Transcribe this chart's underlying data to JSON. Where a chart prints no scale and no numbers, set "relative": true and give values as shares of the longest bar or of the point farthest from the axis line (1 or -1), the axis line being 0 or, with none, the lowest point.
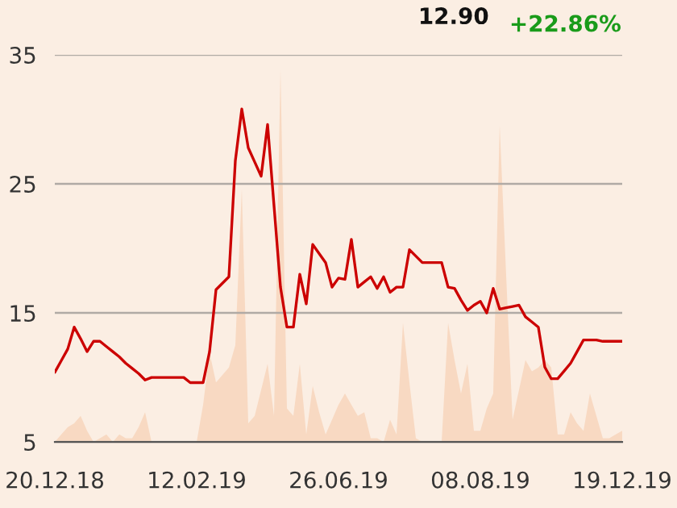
{
  "chart_data": [
    {
      "type": "line",
      "color": "#cc0000",
      "categories": [
        "20.12.18",
        null,
        null,
        null,
        null,
        null,
        null,
        null,
        null,
        null,
        null,
        null,
        null,
        null,
        null,
        null,
        null,
        null,
        null,
        null,
        null,
        null,
        "12.02.19",
        null,
        null,
        null,
        null,
        null,
        null,
        null,
        null,
        null,
        null,
        null,
        null,
        null,
        null,
        null,
        null,
        null,
        null,
        null,
        null,
        null,
        "26.06.19",
        null,
        null,
        null,
        null,
        null,
        null,
        null,
        null,
        null,
        null,
        null,
        null,
        null,
        null,
        null,
        null,
        null,
        null,
        null,
        null,
        null,
        "08.08.19",
        null,
        null,
        null,
        null,
        null,
        null,
        null,
        null,
        null,
        null,
        null,
        null,
        null,
        null,
        null,
        null,
        null,
        null,
        null,
        null,
        null,
        "19.12.19"
      ],
      "values": [
        10.4,
        11.3,
        12.2,
        13.9,
        13.0,
        12.0,
        12.8,
        12.8,
        12.4,
        12.0,
        11.6,
        11.1,
        10.7,
        10.3,
        9.8,
        10.0,
        10.0,
        10.0,
        10.0,
        10.0,
        10.0,
        9.6,
        9.6,
        9.6,
        12.0,
        16.8,
        17.3,
        17.8,
        26.8,
        30.8,
        27.8,
        26.7,
        25.6,
        29.6,
        23.3,
        17.0,
        13.9,
        13.9,
        18.0,
        15.7,
        20.3,
        19.6,
        18.9,
        17.0,
        17.7,
        17.6,
        20.7,
        17.0,
        17.4,
        17.8,
        16.9,
        17.8,
        16.6,
        17.0,
        17.0,
        19.9,
        19.4,
        18.9,
        18.9,
        18.9,
        18.9,
        17.0,
        16.9,
        16.0,
        15.2,
        15.6,
        15.9,
        15.0,
        16.9,
        15.3,
        15.4,
        15.5,
        15.6,
        14.7,
        14.3,
        13.9,
        10.8,
        9.9,
        9.9,
        10.5,
        11.1,
        12.0,
        12.9,
        12.9,
        12.9,
        12.8,
        12.8,
        12.8,
        12.8
      ],
      "ylim": [
        5,
        35
      ],
      "yticks": [
        5,
        15,
        25,
        35
      ],
      "grid": "y",
      "annotations": [
        "12.90",
        "+22.86%"
      ]
    },
    {
      "type": "area",
      "relative": true,
      "color": "#f8d9c2",
      "categories": [
        null,
        null,
        null,
        null,
        null,
        null,
        null,
        null,
        null,
        null,
        null,
        null,
        null,
        null,
        null,
        null,
        null,
        null,
        null,
        null,
        null,
        null,
        null,
        null,
        null,
        null,
        null,
        null,
        null,
        null,
        null,
        null,
        null,
        null,
        null,
        null,
        null,
        null,
        null,
        null,
        null,
        null,
        null,
        null,
        null,
        null,
        null,
        null,
        null,
        null,
        null,
        null,
        null,
        null,
        null,
        null,
        null,
        null,
        null,
        null,
        null,
        null,
        null,
        null,
        null,
        null,
        null,
        null,
        null,
        null,
        null,
        null,
        null,
        null,
        null,
        null,
        null,
        null,
        null,
        null,
        null,
        null,
        null,
        null,
        null,
        null,
        null,
        null,
        null
      ],
      "values": [
        0,
        0.02,
        0.04,
        0.05,
        0.07,
        0.03,
        0,
        0.01,
        0.02,
        0,
        0.02,
        0.01,
        0.01,
        0.04,
        0.08,
        0,
        0,
        0,
        0,
        0,
        0,
        0,
        0,
        0.1,
        0.24,
        0.16,
        0.18,
        0.2,
        0.26,
        0.68,
        0.05,
        0.07,
        0.14,
        0.21,
        0.07,
        1.0,
        0.09,
        0.07,
        0.21,
        0.02,
        0.15,
        0.08,
        0.02,
        0.06,
        0.1,
        0.13,
        0.1,
        0.07,
        0.08,
        0.01,
        0.01,
        0,
        0.06,
        0.02,
        0.32,
        0.16,
        0.01,
        0,
        0,
        0,
        0,
        0.32,
        0.22,
        0.13,
        0.21,
        0.03,
        0.03,
        0.09,
        0.13,
        0.85,
        0.45,
        0.06,
        0.14,
        0.22,
        0.19,
        0.2,
        0.22,
        0.2,
        0.02,
        0.02,
        0.08,
        0.05,
        0.03,
        0.13,
        0.07,
        0.01,
        0.01,
        0.02,
        0.03
      ]
    }
  ]
}
